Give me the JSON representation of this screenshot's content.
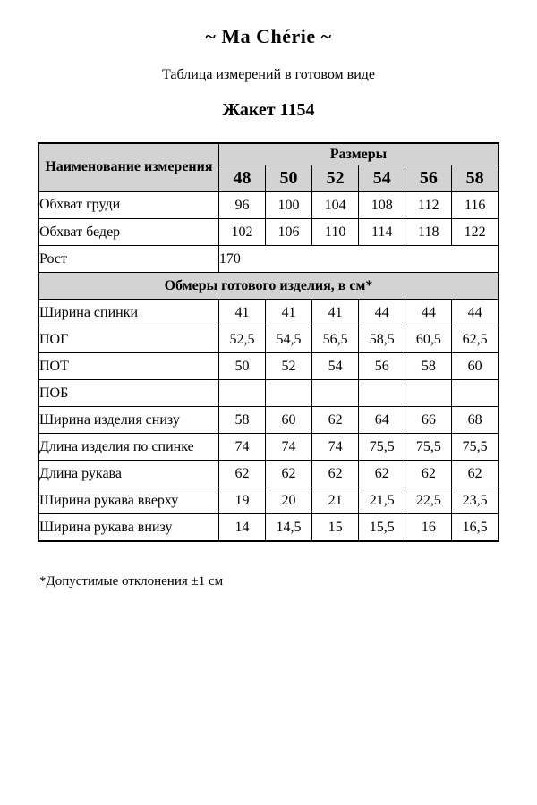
{
  "page": {
    "brand": "~ Ma Chérie ~",
    "subtitle": "Таблица измерений в готовом виде",
    "product": "Жакет 1154",
    "footnote": "*Допустимые отклонения ±1 см"
  },
  "table": {
    "name_header": "Наименование измерения",
    "sizes_header": "Размеры",
    "sizes": [
      "48",
      "50",
      "52",
      "54",
      "56",
      "58"
    ],
    "header_bg": "#d3d3d3",
    "body_rows": [
      {
        "label": "Обхват груди",
        "values": [
          "96",
          "100",
          "104",
          "108",
          "112",
          "116"
        ]
      },
      {
        "label": "Обхват бедер",
        "values": [
          "102",
          "106",
          "110",
          "114",
          "118",
          "122"
        ]
      }
    ],
    "height_row": {
      "label": "Рост",
      "value": "170"
    },
    "section_header": "Обмеры готового изделия, в см*",
    "product_rows": [
      {
        "label": "Ширина спинки",
        "values": [
          "41",
          "41",
          "41",
          "44",
          "44",
          "44"
        ]
      },
      {
        "label": "ПОГ",
        "values": [
          "52,5",
          "54,5",
          "56,5",
          "58,5",
          "60,5",
          "62,5"
        ]
      },
      {
        "label": "ПОТ",
        "values": [
          "50",
          "52",
          "54",
          "56",
          "58",
          "60"
        ]
      },
      {
        "label": "ПОБ",
        "values": [
          "",
          "",
          "",
          "",
          "",
          ""
        ]
      },
      {
        "label": "Ширина изделия снизу",
        "values": [
          "58",
          "60",
          "62",
          "64",
          "66",
          "68"
        ]
      },
      {
        "label": "Длина изделия по спинке",
        "values": [
          "74",
          "74",
          "74",
          "75,5",
          "75,5",
          "75,5"
        ]
      },
      {
        "label": "Длина рукава",
        "values": [
          "62",
          "62",
          "62",
          "62",
          "62",
          "62"
        ]
      },
      {
        "label": "Ширина рукава вверху",
        "values": [
          "19",
          "20",
          "21",
          "21,5",
          "22,5",
          "23,5"
        ]
      },
      {
        "label": "Ширина рукава внизу",
        "values": [
          "14",
          "14,5",
          "15",
          "15,5",
          "16",
          "16,5"
        ]
      }
    ]
  }
}
